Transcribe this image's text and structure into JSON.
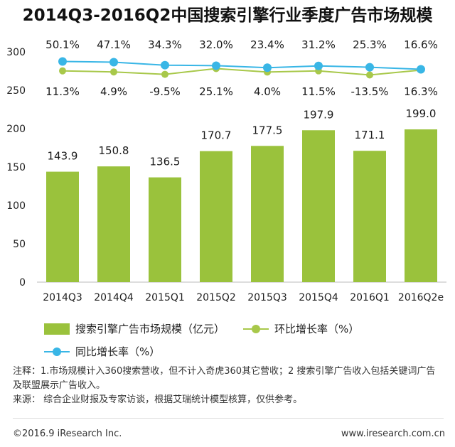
{
  "title": "2014Q3-2016Q2中国搜索引擎行业季度广告市场规模",
  "colors": {
    "bar": "#9ac23c",
    "mom_line": "#a8c84a",
    "yoy_line": "#39b6e6",
    "axis": "#bbbbbb"
  },
  "chart_data": {
    "type": "bar",
    "categories": [
      "2014Q3",
      "2014Q4",
      "2015Q1",
      "2015Q2",
      "2015Q3",
      "2015Q4",
      "2016Q1",
      "2016Q2e"
    ],
    "ylim": [
      0,
      300
    ],
    "yticks": [
      0,
      50,
      100,
      150,
      200,
      250,
      300
    ],
    "ytick_labels": [
      "0",
      "50",
      "100",
      "150",
      "200",
      "250",
      "300"
    ],
    "grid": false,
    "legend_position": "bottom",
    "series": [
      {
        "name": "搜索引擎广告市场规模（亿元）",
        "type": "bar",
        "values": [
          143.9,
          150.8,
          136.5,
          170.7,
          177.5,
          197.9,
          171.1,
          199.0
        ],
        "labels": [
          "143.9",
          "150.8",
          "136.5",
          "170.7",
          "177.5",
          "197.9",
          "171.1",
          "199.0"
        ]
      },
      {
        "name": "环比增长率（%）",
        "type": "line",
        "values": [
          11.3,
          4.9,
          -9.5,
          25.1,
          4.0,
          11.5,
          -13.5,
          16.3
        ],
        "labels": [
          "11.3%",
          "4.9%",
          "-9.5%",
          "25.1%",
          "4.0%",
          "11.5%",
          "-13.5%",
          "16.3%"
        ]
      },
      {
        "name": "同比增长率（%）",
        "type": "line",
        "values": [
          50.1,
          47.1,
          34.3,
          32.0,
          23.4,
          31.2,
          25.3,
          16.6
        ],
        "labels": [
          "50.1%",
          "47.1%",
          "34.3%",
          "32.0%",
          "23.4%",
          "31.2%",
          "25.3%",
          "16.6%"
        ]
      }
    ]
  },
  "notes": {
    "line1": "注释：1.市场规模计入360搜索营收，但不计入奇虎360其它营收；2 搜索引擎广告收入包括关键词广告及联盟展示广告收入。",
    "line2": "来源：  综合企业财报及专家访谈，根据艾瑞统计模型核算，仅供参考。"
  },
  "footer": {
    "copyright": "©2016.9  iResearch Inc.",
    "website": "www.iresearch.com.cn"
  }
}
